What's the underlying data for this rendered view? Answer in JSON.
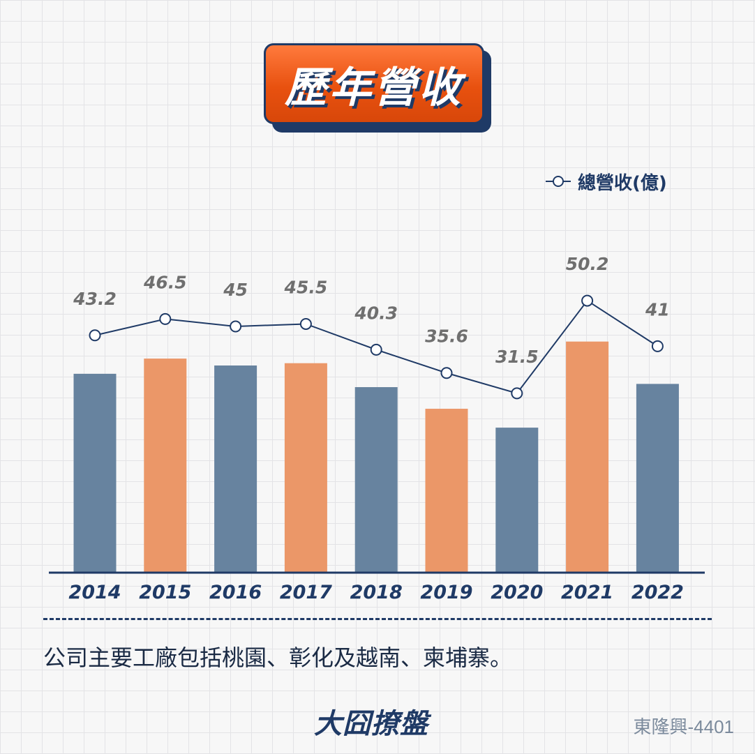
{
  "title": "歷年營收",
  "legend": {
    "label": "總營收(億)",
    "icon": "circle-marker-line-icon"
  },
  "colors": {
    "navy": "#1f3a66",
    "bar_blue": "#67839f",
    "bar_orange": "#eb9768",
    "label_gray": "#6f6f6f"
  },
  "chart_data": {
    "type": "bar",
    "categories": [
      "2014",
      "2015",
      "2016",
      "2017",
      "2018",
      "2019",
      "2020",
      "2021",
      "2022"
    ],
    "series": [
      {
        "name": "總營收(億)",
        "values": [
          43.2,
          46.5,
          45,
          45.5,
          40.3,
          35.6,
          31.5,
          50.2,
          41
        ]
      }
    ],
    "bar_colors": [
      "blue",
      "orange",
      "blue",
      "orange",
      "blue",
      "orange",
      "blue",
      "orange",
      "blue"
    ],
    "overlay_line": true,
    "data_labels": [
      "43.2",
      "46.5",
      "45",
      "45.5",
      "40.3",
      "35.6",
      "31.5",
      "50.2",
      "41"
    ]
  },
  "caption": "公司主要工廠包括桃園、彰化及越南、柬埔寨。",
  "logo_text": "大囧撩盤",
  "stock_label": "東隆興-4401"
}
